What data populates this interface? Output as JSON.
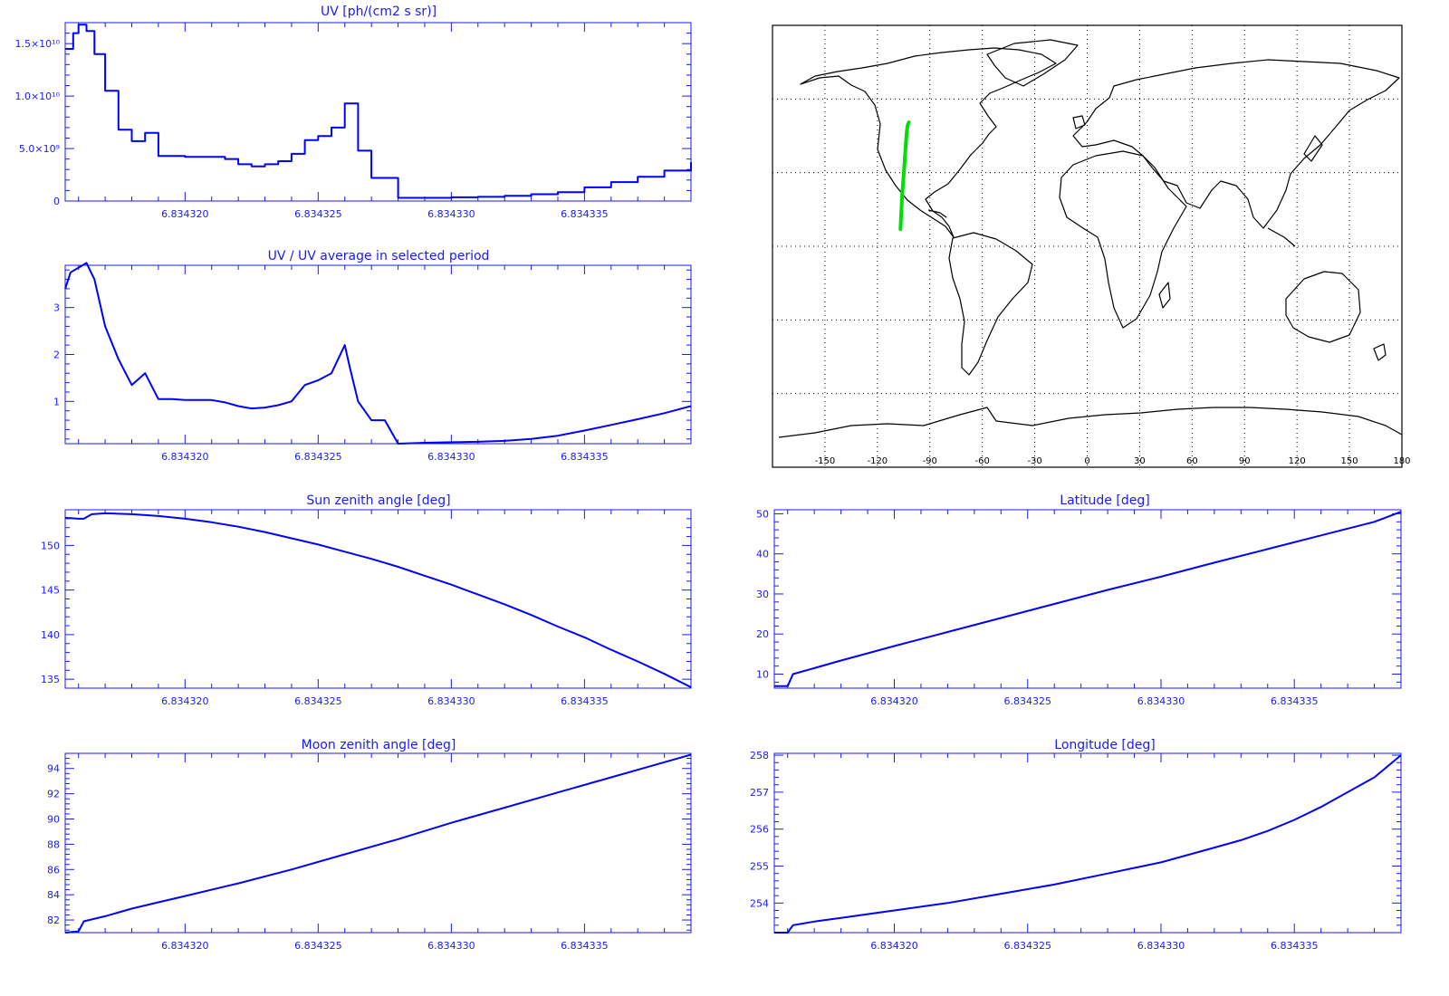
{
  "colors": {
    "axis": "#1a1aff",
    "line": "#0000ff",
    "track": "#00e000",
    "map": "#000000",
    "grid": "#000000",
    "background": "#ffffff"
  },
  "chart_data": [
    {
      "id": "uv",
      "type": "line",
      "title": "UV [ph/(cm2 s sr)]",
      "xlabel": "",
      "ylabel": "",
      "xlim": [
        6.8343155,
        6.834339
      ],
      "ylim": [
        0,
        17000000000
      ],
      "xticks": [
        6.83432,
        6.834325,
        6.83433,
        6.834335
      ],
      "xtick_labels": [
        "6.834320",
        "6.834325",
        "6.834330",
        "6.834335"
      ],
      "yticks": [
        0,
        5000000000,
        10000000000,
        15000000000
      ],
      "ytick_labels": [
        "0",
        "5.0×10⁹",
        "1.0×10¹⁰",
        "1.5×10¹⁰"
      ],
      "step": true,
      "x": [
        6.8343155,
        6.8343158,
        6.834316,
        6.8343163,
        6.8343166,
        6.834317,
        6.8343175,
        6.834318,
        6.8343185,
        6.834319,
        6.8343195,
        6.83432,
        6.834321,
        6.8343215,
        6.834322,
        6.8343225,
        6.834323,
        6.8343235,
        6.834324,
        6.8343245,
        6.834325,
        6.8343255,
        6.834326,
        6.8343262,
        6.8343265,
        6.834327,
        6.8343275,
        6.834328,
        6.834329,
        6.83433,
        6.834331,
        6.834332,
        6.834333,
        6.834334,
        6.834335,
        6.834336,
        6.834337,
        6.834338,
        6.834339
      ],
      "y": [
        14500000000,
        16000000000,
        16800000000,
        16200000000,
        14000000000,
        10500000000,
        6800000000,
        5700000000,
        6500000000,
        4300000000,
        4300000000,
        4200000000,
        4200000000,
        4000000000,
        3500000000,
        3300000000,
        3500000000,
        3800000000,
        4500000000,
        5800000000,
        6200000000,
        7000000000,
        9300000000,
        9300000000,
        4800000000,
        2200000000,
        2200000000,
        300000000,
        300000000,
        350000000,
        400000000,
        500000000,
        650000000,
        850000000,
        1300000000,
        1800000000,
        2300000000,
        2900000000,
        3700000000
      ]
    },
    {
      "id": "uv-ratio",
      "type": "line",
      "title": "UV / UV average in selected period",
      "xlabel": "",
      "ylabel": "",
      "xlim": [
        6.8343155,
        6.834339
      ],
      "ylim": [
        0.1,
        3.9
      ],
      "xticks": [
        6.83432,
        6.834325,
        6.83433,
        6.834335
      ],
      "xtick_labels": [
        "6.834320",
        "6.834325",
        "6.834330",
        "6.834335"
      ],
      "yticks": [
        1,
        2,
        3
      ],
      "ytick_labels": [
        "1",
        "2",
        "3"
      ],
      "step": false,
      "x": [
        6.8343155,
        6.8343157,
        6.834316,
        6.8343163,
        6.8343166,
        6.834317,
        6.8343175,
        6.834318,
        6.8343185,
        6.834319,
        6.8343195,
        6.83432,
        6.834321,
        6.8343215,
        6.834322,
        6.8343225,
        6.834323,
        6.8343235,
        6.834324,
        6.8343245,
        6.834325,
        6.8343255,
        6.834326,
        6.8343262,
        6.8343265,
        6.834327,
        6.8343275,
        6.834328,
        6.834329,
        6.83433,
        6.834331,
        6.834332,
        6.834333,
        6.834334,
        6.834335,
        6.834336,
        6.834337,
        6.834338,
        6.834339
      ],
      "y": [
        3.4,
        3.75,
        3.85,
        3.95,
        3.6,
        2.6,
        1.9,
        1.35,
        1.6,
        1.05,
        1.05,
        1.03,
        1.03,
        0.98,
        0.9,
        0.85,
        0.87,
        0.92,
        1.0,
        1.35,
        1.45,
        1.6,
        2.2,
        1.7,
        1.0,
        0.6,
        0.6,
        0.1,
        0.12,
        0.13,
        0.14,
        0.16,
        0.2,
        0.27,
        0.38,
        0.5,
        0.62,
        0.75,
        0.9
      ]
    },
    {
      "id": "sun-zenith",
      "type": "line",
      "title": "Sun zenith angle [deg]",
      "xlabel": "",
      "ylabel": "",
      "xlim": [
        6.8343155,
        6.834339
      ],
      "ylim": [
        134,
        154
      ],
      "xticks": [
        6.83432,
        6.834325,
        6.83433,
        6.834335
      ],
      "xtick_labels": [
        "6.834320",
        "6.834325",
        "6.834330",
        "6.834335"
      ],
      "yticks": [
        135,
        140,
        145,
        150
      ],
      "ytick_labels": [
        "135",
        "140",
        "145",
        "150"
      ],
      "step": false,
      "x": [
        6.8343155,
        6.834316,
        6.8343162,
        6.8343165,
        6.834317,
        6.834318,
        6.834319,
        6.83432,
        6.834321,
        6.834322,
        6.834323,
        6.834324,
        6.834325,
        6.834326,
        6.834327,
        6.834328,
        6.834329,
        6.83433,
        6.834331,
        6.834332,
        6.834333,
        6.834334,
        6.834335,
        6.834336,
        6.834337,
        6.834338,
        6.834339
      ],
      "y": [
        153.1,
        153.0,
        153.0,
        153.5,
        153.6,
        153.5,
        153.3,
        153.0,
        152.6,
        152.1,
        151.5,
        150.8,
        150.1,
        149.3,
        148.5,
        147.6,
        146.6,
        145.6,
        144.5,
        143.4,
        142.2,
        140.9,
        139.7,
        138.3,
        137.0,
        135.6,
        134.1
      ]
    },
    {
      "id": "latitude",
      "type": "line",
      "title": "Latitude [deg]",
      "xlabel": "",
      "ylabel": "",
      "xlim": [
        6.8343155,
        6.834339
      ],
      "ylim": [
        6.5,
        51
      ],
      "xticks": [
        6.83432,
        6.834325,
        6.83433,
        6.834335
      ],
      "xtick_labels": [
        "6.834320",
        "6.834325",
        "6.834330",
        "6.834335"
      ],
      "yticks": [
        10,
        20,
        30,
        40,
        50
      ],
      "ytick_labels": [
        "10",
        "20",
        "30",
        "40",
        "50"
      ],
      "step": false,
      "x": [
        6.8343155,
        6.834316,
        6.8343162,
        6.834317,
        6.834318,
        6.834319,
        6.83432,
        6.834322,
        6.834324,
        6.834326,
        6.834328,
        6.83433,
        6.834332,
        6.834334,
        6.834336,
        6.834338,
        6.834339
      ],
      "y": [
        7.0,
        7.0,
        10.0,
        11.5,
        13.4,
        15.2,
        17.0,
        20.5,
        24.0,
        27.5,
        31.0,
        34.3,
        37.8,
        41.2,
        44.6,
        48.0,
        50.5
      ]
    },
    {
      "id": "moon-zenith",
      "type": "line",
      "title": "Moon zenith angle [deg]",
      "xlabel": "",
      "ylabel": "",
      "xlim": [
        6.8343155,
        6.834339
      ],
      "ylim": [
        81,
        95.2
      ],
      "xticks": [
        6.83432,
        6.834325,
        6.83433,
        6.834335
      ],
      "xtick_labels": [
        "6.834320",
        "6.834325",
        "6.834330",
        "6.834335"
      ],
      "yticks": [
        82,
        84,
        86,
        88,
        90,
        92,
        94
      ],
      "ytick_labels": [
        "82",
        "84",
        "86",
        "88",
        "90",
        "92",
        "94"
      ],
      "step": false,
      "x": [
        6.8343155,
        6.834316,
        6.8343162,
        6.834317,
        6.834318,
        6.834319,
        6.83432,
        6.834322,
        6.834324,
        6.834326,
        6.834328,
        6.83433,
        6.834332,
        6.834334,
        6.834336,
        6.834338,
        6.834339
      ],
      "y": [
        81.0,
        81.1,
        81.9,
        82.3,
        82.9,
        83.4,
        83.9,
        84.9,
        86.0,
        87.2,
        88.4,
        89.7,
        90.9,
        92.1,
        93.3,
        94.5,
        95.1
      ]
    },
    {
      "id": "longitude",
      "type": "line",
      "title": "Longitude [deg]",
      "xlabel": "",
      "ylabel": "",
      "xlim": [
        6.8343155,
        6.834339
      ],
      "ylim": [
        253.2,
        258.05
      ],
      "xticks": [
        6.83432,
        6.834325,
        6.83433,
        6.834335
      ],
      "xtick_labels": [
        "6.834320",
        "6.834325",
        "6.834330",
        "6.834335"
      ],
      "yticks": [
        254,
        255,
        256,
        257,
        258
      ],
      "ytick_labels": [
        "254",
        "255",
        "256",
        "257",
        "258"
      ],
      "step": false,
      "x": [
        6.8343155,
        6.834316,
        6.8343162,
        6.834317,
        6.834318,
        6.83432,
        6.834322,
        6.834324,
        6.834326,
        6.834328,
        6.83433,
        6.834332,
        6.834333,
        6.834334,
        6.834335,
        6.834336,
        6.834337,
        6.834338,
        6.834339
      ],
      "y": [
        253.2,
        253.2,
        253.4,
        253.5,
        253.6,
        253.8,
        254.0,
        254.25,
        254.5,
        254.8,
        255.1,
        255.5,
        255.7,
        255.95,
        256.25,
        256.6,
        257.0,
        257.4,
        258.0
      ]
    },
    {
      "id": "ground-track-map",
      "type": "scatter",
      "title": "",
      "xlabel": "",
      "ylabel": "",
      "xlim": [
        -180,
        180
      ],
      "ylim": [
        -90,
        90
      ],
      "xticks": [
        -150,
        -120,
        -90,
        -60,
        -30,
        0,
        30,
        60,
        90,
        120,
        150,
        180
      ],
      "xtick_labels": [
        "-150",
        "-120",
        "-90",
        "-60",
        "-30",
        "0",
        "30",
        "60",
        "90",
        "120",
        "150",
        "180"
      ],
      "grid": true,
      "series": [
        {
          "x": [
            -106.8,
            -106.6,
            -106.4,
            -106.2,
            -106.0,
            -105.7,
            -105.4,
            -105.1,
            -104.8,
            -104.5,
            -104.2,
            -103.9,
            -103.6,
            -103.3,
            -103.0,
            -102.6,
            -102.0
          ],
          "y": [
            7.0,
            10.0,
            13.0,
            16.0,
            19.0,
            22.0,
            25.0,
            28.0,
            31.0,
            34.0,
            37.0,
            40.0,
            43.0,
            46.0,
            48.0,
            49.5,
            50.5
          ]
        }
      ]
    }
  ]
}
